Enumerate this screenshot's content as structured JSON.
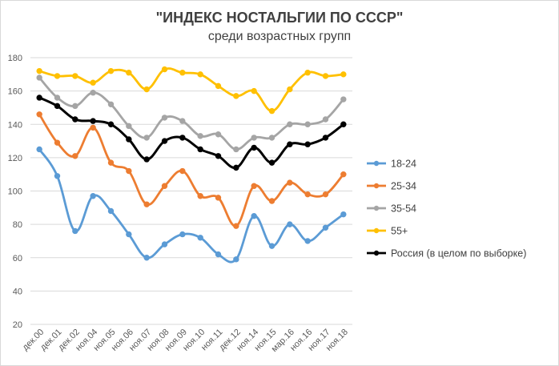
{
  "chart_data": {
    "type": "line",
    "title": "\"ИНДЕКС НОСТАЛЬГИИ ПО СССР\"",
    "subtitle": "среди возрастных групп",
    "categories": [
      "дек.00",
      "дек.01",
      "дек.02",
      "ноя.04",
      "ноя.05",
      "ноя.06",
      "ноя.07",
      "ноя.08",
      "ноя.09",
      "ноя.10",
      "ноя.11",
      "дек.12",
      "ноя.14",
      "ноя.15",
      "мар.16",
      "ноя.16",
      "ноя.17",
      "ноя.18"
    ],
    "ylim": [
      20,
      180
    ],
    "yticks": [
      20,
      40,
      60,
      80,
      100,
      120,
      140,
      160,
      180
    ],
    "grid": true,
    "legend_position": "right",
    "series": [
      {
        "name": "18-24",
        "color": "#5b9bd5",
        "values": [
          125,
          109,
          76,
          97,
          88,
          74,
          60,
          68,
          74,
          72,
          62,
          59,
          85,
          67,
          80,
          70,
          78,
          86
        ]
      },
      {
        "name": "25-34",
        "color": "#ed7d31",
        "values": [
          146,
          129,
          121,
          138,
          117,
          112,
          92,
          103,
          112,
          97,
          96,
          79,
          103,
          94,
          105,
          98,
          98,
          110
        ]
      },
      {
        "name": "35-54",
        "color": "#a5a5a5",
        "values": [
          168,
          156,
          151,
          159,
          152,
          139,
          132,
          144,
          142,
          133,
          134,
          125,
          132,
          132,
          140,
          140,
          143,
          155
        ]
      },
      {
        "name": "55+",
        "color": "#ffc000",
        "values": [
          172,
          169,
          169,
          165,
          172,
          171,
          161,
          173,
          171,
          170,
          163,
          157,
          160,
          148,
          161,
          171,
          169,
          170
        ]
      },
      {
        "name": "Россия (в целом по  выборке)",
        "color": "#000000",
        "values": [
          156,
          151,
          143,
          142,
          140,
          131,
          119,
          130,
          132,
          125,
          121,
          114,
          126,
          117,
          128,
          128,
          132,
          140
        ]
      }
    ]
  }
}
